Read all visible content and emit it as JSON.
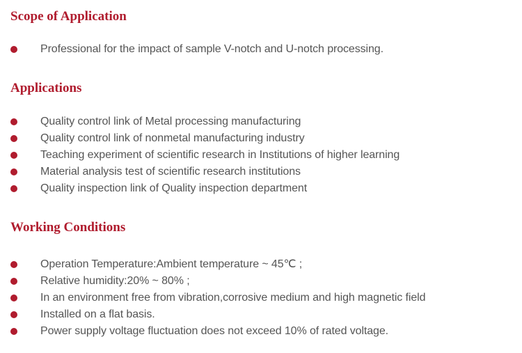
{
  "colors": {
    "accent": "#b01c2e",
    "text": "#555555"
  },
  "sections": [
    {
      "title": "Scope of Application",
      "items": [
        "Professional for the impact of sample V-notch and U-notch processing."
      ]
    },
    {
      "title": "Applications",
      "items": [
        "Quality control link of Metal processing manufacturing",
        "Quality control link of nonmetal manufacturing industry",
        "Teaching experiment of scientific research in Institutions of higher learning",
        "Material analysis test of scientific research institutions",
        "Quality inspection link of Quality inspection department"
      ]
    },
    {
      "title": "Working Conditions",
      "items": [
        "Operation Temperature:Ambient temperature ~ 45℃ ;",
        "Relative humidity:20% ~ 80% ;",
        "In an environment free from vibration,corrosive medium and high magnetic field",
        "Installed on a flat basis.",
        "Power supply voltage fluctuation does not exceed 10% of rated voltage."
      ]
    }
  ]
}
